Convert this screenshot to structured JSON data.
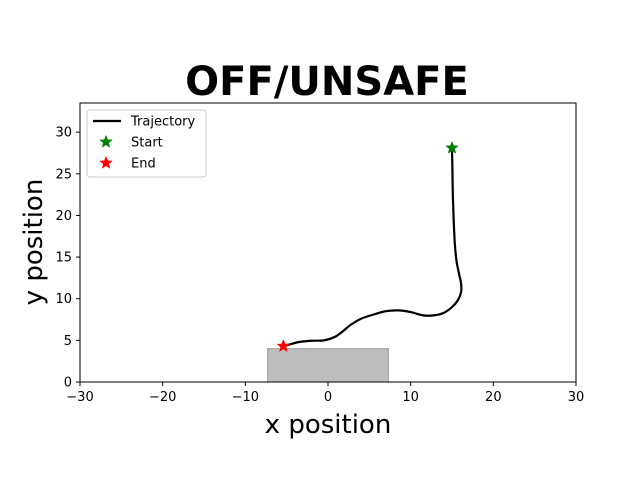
{
  "chart_data": {
    "type": "line",
    "title": "OFF/UNSAFE",
    "xlabel": "x position",
    "ylabel": "y position",
    "xlim": [
      -30,
      30
    ],
    "ylim": [
      0,
      33.5
    ],
    "xticks": [
      -30,
      -20,
      -10,
      0,
      10,
      20,
      30
    ],
    "yticks": [
      0,
      5,
      10,
      15,
      20,
      25,
      30
    ],
    "grid": false,
    "legend_position": "top-left",
    "legend": [
      "Trajectory",
      "Start",
      "End"
    ],
    "series": [
      {
        "name": "Trajectory",
        "color": "#000000",
        "x": [
          15.0,
          15.05,
          15.1,
          15.2,
          15.35,
          15.55,
          15.85,
          16.1,
          16.1,
          15.7,
          15.0,
          14.0,
          12.8,
          11.5,
          10.0,
          8.5,
          7.0,
          5.5,
          4.0,
          2.8,
          1.8,
          0.8,
          -0.5,
          -2.0,
          -3.5,
          -4.7,
          -5.4
        ],
        "y": [
          28.1,
          25.5,
          22.5,
          19.5,
          16.5,
          14.5,
          13.0,
          11.8,
          10.8,
          9.8,
          9.0,
          8.3,
          8.0,
          8.0,
          8.4,
          8.6,
          8.5,
          8.1,
          7.6,
          6.9,
          6.1,
          5.4,
          5.0,
          4.95,
          4.8,
          4.5,
          4.3
        ]
      },
      {
        "name": "Start",
        "color": "#008000",
        "marker": "star",
        "x": [
          15.0
        ],
        "y": [
          28.1
        ]
      },
      {
        "name": "End",
        "color": "#ff0000",
        "marker": "star",
        "x": [
          -5.4
        ],
        "y": [
          4.3
        ]
      }
    ],
    "regions": [
      {
        "x": [
          -7.3,
          7.3
        ],
        "y": [
          0,
          4.0
        ],
        "color": "#bebebe"
      }
    ]
  }
}
